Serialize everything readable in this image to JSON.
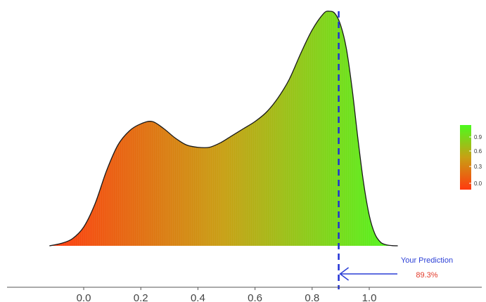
{
  "chart_data": {
    "type": "area",
    "title": "",
    "xlabel": "",
    "ylabel": "",
    "xlim": [
      -0.13,
      1.13
    ],
    "x_ticks": [
      0.0,
      0.2,
      0.4,
      0.6,
      0.8,
      1.0
    ],
    "x_tick_labels": [
      "0.0",
      "0.2",
      "0.4",
      "0.6",
      "0.8",
      "1.0"
    ],
    "grid": false,
    "fill": "gradient by x, red to green",
    "colors": {
      "low": "#ff3a0f",
      "mid": "#c8a014",
      "high": "#4cfa1e",
      "outline": "#1a1a1a"
    },
    "density_curve": {
      "x": [
        -0.12,
        -0.08,
        -0.04,
        0.0,
        0.04,
        0.08,
        0.12,
        0.16,
        0.2,
        0.24,
        0.28,
        0.32,
        0.36,
        0.4,
        0.44,
        0.48,
        0.52,
        0.56,
        0.6,
        0.64,
        0.68,
        0.72,
        0.76,
        0.8,
        0.84,
        0.86,
        0.88,
        0.9,
        0.92,
        0.94,
        0.96,
        0.98,
        1.0,
        1.02,
        1.04,
        1.06,
        1.08,
        1.1
      ],
      "y": [
        0.0,
        0.01,
        0.03,
        0.08,
        0.18,
        0.32,
        0.43,
        0.49,
        0.52,
        0.53,
        0.5,
        0.46,
        0.43,
        0.42,
        0.42,
        0.44,
        0.47,
        0.5,
        0.53,
        0.57,
        0.63,
        0.71,
        0.82,
        0.92,
        0.99,
        1.0,
        0.99,
        0.94,
        0.84,
        0.67,
        0.46,
        0.27,
        0.13,
        0.05,
        0.015,
        0.004,
        0.001,
        0.0
      ]
    },
    "prediction_line": {
      "x": 0.893,
      "color": "#1f2fd6",
      "style": "dashed"
    },
    "annotation": {
      "title": "Your Prediction",
      "value_text": "89.3%",
      "title_color": "#2b3fd6",
      "value_color": "#e23a2a",
      "arrow_color": "#2b3fd6"
    },
    "legend": {
      "placement": "right",
      "type": "colorbar",
      "labels": [
        "0.9",
        "0.6",
        "0.3",
        "0.0"
      ],
      "colors": [
        "#4cfa1e",
        "#9fd414",
        "#d8a40f",
        "#ff3a0f"
      ]
    }
  }
}
